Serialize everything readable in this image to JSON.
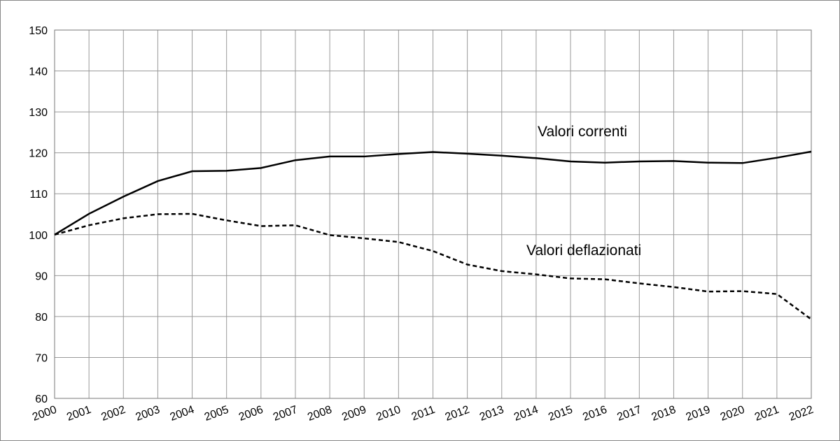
{
  "chart_data": {
    "type": "line",
    "x": [
      2000,
      2001,
      2002,
      2003,
      2004,
      2005,
      2006,
      2007,
      2008,
      2009,
      2010,
      2011,
      2012,
      2013,
      2014,
      2015,
      2016,
      2017,
      2018,
      2019,
      2020,
      2021,
      2022
    ],
    "xlim": [
      2000,
      2022
    ],
    "xticks": [
      2000,
      2001,
      2002,
      2003,
      2004,
      2005,
      2006,
      2007,
      2008,
      2009,
      2010,
      2011,
      2012,
      2013,
      2014,
      2015,
      2016,
      2017,
      2018,
      2019,
      2020,
      2021,
      2022
    ],
    "ylim": [
      60,
      150
    ],
    "yticks": [
      60,
      70,
      80,
      90,
      100,
      110,
      120,
      130,
      140,
      150
    ],
    "grid": true,
    "series": [
      {
        "name": "Valori correnti",
        "color": "#000000",
        "dash": "solid",
        "values": [
          100,
          105.1,
          109.3,
          113.1,
          115.5,
          115.6,
          116.3,
          118.2,
          119.1,
          119.1,
          119.7,
          120.2,
          119.8,
          119.3,
          118.7,
          117.9,
          117.6,
          117.9,
          118,
          117.6,
          117.5,
          118.8,
          120.3
        ]
      },
      {
        "name": "Valori deflazionati",
        "color": "#000000",
        "dash": "dashed",
        "values": [
          100,
          102.3,
          104,
          105,
          105.1,
          103.5,
          102.1,
          102.3,
          99.9,
          99.1,
          98.2,
          96,
          92.7,
          91.1,
          90.3,
          89.3,
          89.1,
          88.1,
          87.2,
          86.1,
          86.2,
          85.5,
          79.3
        ]
      }
    ]
  }
}
